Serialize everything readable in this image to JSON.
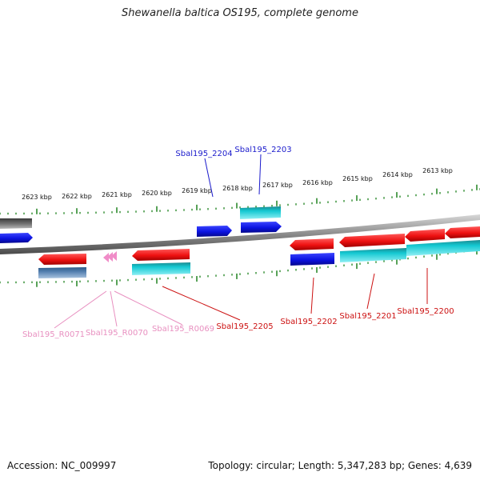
{
  "title": "Shewanella baltica OS195, complete genome",
  "footer": {
    "accession": "Accession: NC_009997",
    "summary": "Topology: circular; Length: 5,347,283 bp; Genes: 4,639"
  },
  "colors": {
    "backbone": "#8a8a8a",
    "tick": "#2e8b2e",
    "cds_plus": "#0b12e0",
    "cds_minus": "#ee1111",
    "cds_paired": "#14c8d2",
    "trna": "#f08cc8",
    "pseudo": "#5580b0",
    "gray_feature": "#707070",
    "label_blue": "#1a1acc",
    "label_red": "#cc1111",
    "label_pink": "#e890c0"
  },
  "axis": {
    "unit": "kbp",
    "ticks": [
      "2623 kbp",
      "2622 kbp",
      "2621 kbp",
      "2620 kbp",
      "2619 kbp",
      "2618 kbp",
      "2617 kbp",
      "2616 kbp",
      "2615 kbp",
      "2614 kbp",
      "2613 kbp"
    ]
  },
  "features": [
    {
      "label": "Sbal195_2204",
      "type": "CDS",
      "strand": "+",
      "color_key": "label_blue"
    },
    {
      "label": "Sbal195_2203",
      "type": "CDS",
      "strand": "+",
      "color_key": "label_blue"
    },
    {
      "label": "Sbal195_R0071",
      "type": "tRNA",
      "strand": "-",
      "color_key": "label_pink"
    },
    {
      "label": "Sbal195_R0070",
      "type": "tRNA",
      "strand": "-",
      "color_key": "label_pink"
    },
    {
      "label": "Sbal195_R0069",
      "type": "tRNA",
      "strand": "-",
      "color_key": "label_pink"
    },
    {
      "label": "Sbal195_2205",
      "type": "CDS",
      "strand": "-",
      "color_key": "label_red"
    },
    {
      "label": "Sbal195_2202",
      "type": "CDS",
      "strand": "-",
      "color_key": "label_red"
    },
    {
      "label": "Sbal195_2201",
      "type": "CDS",
      "strand": "-",
      "color_key": "label_red"
    },
    {
      "label": "Sbal195_2200",
      "type": "CDS",
      "strand": "-",
      "color_key": "label_red"
    }
  ]
}
